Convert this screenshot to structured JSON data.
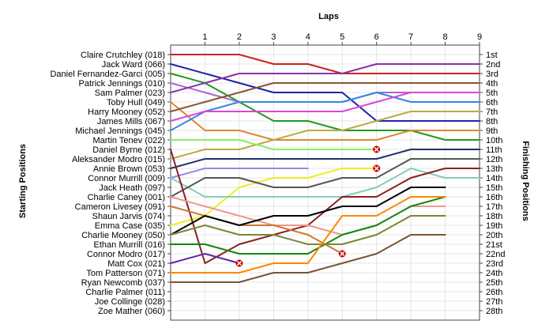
{
  "chart_data": {
    "type": "line",
    "title": "",
    "xlabel": "Laps",
    "ylabel_left": "Starting Positions",
    "ylabel_right": "Finishing Positions",
    "x_ticks": [
      "1",
      "2",
      "3",
      "4",
      "5",
      "6",
      "7",
      "8",
      "9"
    ],
    "xlim": [
      0,
      9
    ],
    "position_range": [
      1,
      28
    ],
    "grid": true,
    "starting_labels": [
      "Claire Crutchley (018)",
      "Jack Ward (066)",
      "Daniel Fernandez-Garci (005)",
      "Patrick Jennings (010)",
      "Sam Palmer (023)",
      "Toby Hull (049)",
      "Harry Mooney (052)",
      "James Mills (067)",
      "Michael Jennings (045)",
      "Martin Tenev (022)",
      "Daniel Byrne (012)",
      "Aleksander Modro (015)",
      "Annie Brown (053)",
      "Connor Murrill (009)",
      "Jack Heath (097)",
      "Charlie Caney (001)",
      "Cameron Livesey (091)",
      "Shaun Jarvis (074)",
      "Emma Case (035)",
      "Charlie Mooney (050)",
      "Ethan Murrill (016)",
      "Connor Modro (017)",
      "Matt Cox (021)",
      "Tom Patterson (071)",
      "Ryan Newcomb (037)",
      "Charlie Palmer (011)",
      "Joe Collinge (028)",
      "Zoe Mather (060)"
    ],
    "finishing_labels": [
      "1st",
      "2nd",
      "3rd",
      "4th",
      "5th",
      "6th",
      "7th",
      "8th",
      "9th",
      "10th",
      "11th",
      "12th",
      "13th",
      "14th",
      "15th",
      "16th",
      "17th",
      "18th",
      "19th",
      "20th",
      "21st",
      "22nd",
      "23rd",
      "24th",
      "25th",
      "26th",
      "27th",
      "28th"
    ],
    "series": [
      {
        "color": "#cc2222",
        "values": [
          1,
          1,
          1,
          2,
          2,
          3,
          3,
          3,
          3,
          3
        ]
      },
      {
        "color": "#2222aa",
        "values": [
          2,
          3,
          4,
          5,
          5,
          5,
          8,
          8,
          8,
          8
        ]
      },
      {
        "color": "#229922",
        "values": [
          3,
          4,
          6,
          8,
          8,
          9,
          9,
          9,
          10,
          10
        ]
      },
      {
        "color": "#aa66cc",
        "values": [
          4,
          5,
          6,
          6,
          6,
          6,
          5,
          5,
          5,
          5
        ]
      },
      {
        "color": "#8833aa",
        "values": [
          5,
          4,
          3,
          3,
          3,
          3,
          2,
          2,
          2,
          2
        ]
      },
      {
        "color": "#dd8833",
        "values": [
          6,
          9,
          9,
          10,
          10,
          10,
          10,
          9,
          9,
          9
        ]
      },
      {
        "color": "#3388dd",
        "values": [
          9,
          7,
          6,
          6,
          6,
          6,
          5,
          6,
          6,
          6
        ]
      },
      {
        "color": "#dd44dd",
        "values": [
          8,
          7,
          7,
          7,
          7,
          7,
          6,
          5,
          5,
          5
        ]
      },
      {
        "color": "#885533",
        "values": [
          7,
          6,
          5,
          4,
          4,
          4,
          4,
          4,
          4,
          4
        ]
      },
      {
        "color": "#eeee22",
        "values": [
          19,
          18,
          15,
          14,
          14,
          13,
          13
        ]
      },
      {
        "color": "#bbaa44",
        "values": [
          12,
          11,
          11,
          10,
          9,
          9,
          8,
          7,
          7,
          7
        ]
      },
      {
        "color": "#88ee66",
        "values": [
          10,
          10,
          10,
          11,
          11,
          11,
          11
        ]
      },
      {
        "color": "#223366",
        "values": [
          13,
          12,
          12,
          12,
          12,
          12,
          12,
          11,
          11,
          11
        ]
      },
      {
        "color": "#9988dd",
        "values": [
          14,
          13,
          13,
          13,
          13
        ]
      },
      {
        "color": "#88ccbb",
        "values": [
          14,
          16,
          16,
          16,
          16,
          16,
          15,
          13,
          14,
          14
        ]
      },
      {
        "color": "#555555",
        "values": [
          16,
          14,
          14,
          15,
          15,
          14,
          14,
          12,
          12,
          12
        ]
      },
      {
        "color": "#882222",
        "values": [
          11,
          23,
          21,
          20,
          19,
          16,
          16,
          14,
          13,
          13
        ]
      },
      {
        "color": "#ee9988",
        "values": [
          16,
          17,
          18,
          19,
          19,
          20,
          19,
          17,
          17
        ]
      },
      {
        "color": "#cc7733",
        "values": [
          17,
          18,
          19,
          19,
          20,
          22
        ]
      },
      {
        "color": "#000000",
        "values": [
          20,
          18,
          19,
          18,
          18,
          17,
          17,
          15,
          15
        ]
      },
      {
        "color": "#118811",
        "values": [
          21,
          21,
          22,
          22,
          22,
          20,
          19,
          17,
          16
        ]
      },
      {
        "color": "#778833",
        "values": [
          20,
          19,
          20,
          20,
          21,
          21,
          20,
          18,
          18
        ]
      },
      {
        "color": "#6622aa",
        "values": [
          23,
          22,
          23
        ]
      },
      {
        "color": "#ff8800",
        "values": [
          24,
          24,
          24,
          23,
          23,
          18,
          18,
          16,
          16
        ]
      },
      {
        "color": "#775533",
        "values": [
          25,
          25,
          25,
          24,
          24,
          23,
          22,
          20,
          20
        ]
      }
    ],
    "retired_markers": [
      {
        "lap": 2,
        "position": 23
      },
      {
        "lap": 5,
        "position": 22
      },
      {
        "lap": 6,
        "position": 11
      },
      {
        "lap": 6,
        "position": 13
      }
    ]
  }
}
